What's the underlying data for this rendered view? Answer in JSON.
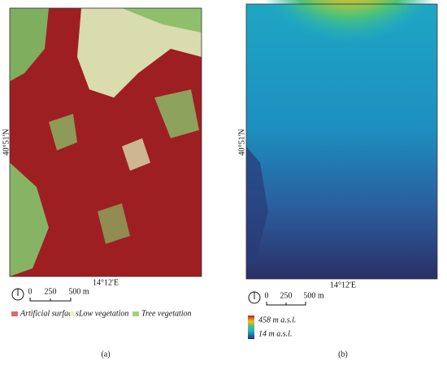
{
  "panels": [
    {
      "label": "(a)",
      "lat_label": "40°51'N",
      "lon_label": "14°12'E",
      "scale_labels": [
        "0",
        "250",
        "500 m"
      ],
      "legend": [
        {
          "name": "Artificial surfaces",
          "color": "#e06a6a"
        },
        {
          "name": "Low vegetation",
          "color": "#eef0cf"
        },
        {
          "name": "Tree vegetation",
          "color": "#a9cf86"
        }
      ]
    },
    {
      "label": "(b)",
      "lat_label": "40°51'N",
      "lon_label": "14°12'E",
      "scale_labels": [
        "0",
        "250",
        "500 m"
      ],
      "colorbar": {
        "max": "458 m a.s.l.",
        "min": "14 m a.s.l."
      }
    }
  ]
}
